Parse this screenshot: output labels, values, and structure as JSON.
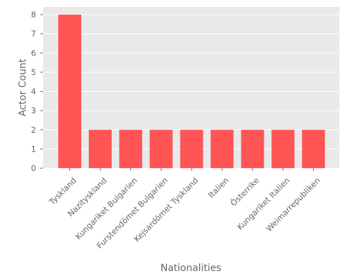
{
  "chart_data": {
    "type": "bar",
    "title": "",
    "xlabel": "Nationalities",
    "ylabel": "Actor Count",
    "categories": [
      "Tyskland",
      "Nazityskland",
      "Kungariket Bulgarien",
      "Furstendömet Bulgarien",
      "Kejsardömet Tyskland",
      "Italien",
      "Österrike",
      "Kungariket Italien",
      "Weimarrepubliken"
    ],
    "values": [
      8,
      2,
      2,
      2,
      2,
      2,
      2,
      2,
      2
    ],
    "ylim": [
      0,
      8.4
    ],
    "yticks": [
      "0",
      "1",
      "2",
      "3",
      "4",
      "5",
      "6",
      "7",
      "8"
    ],
    "grid": true,
    "bar_color": "#ff5555",
    "plot_background": "#e9e9e9",
    "grid_color": "#ffffff"
  }
}
